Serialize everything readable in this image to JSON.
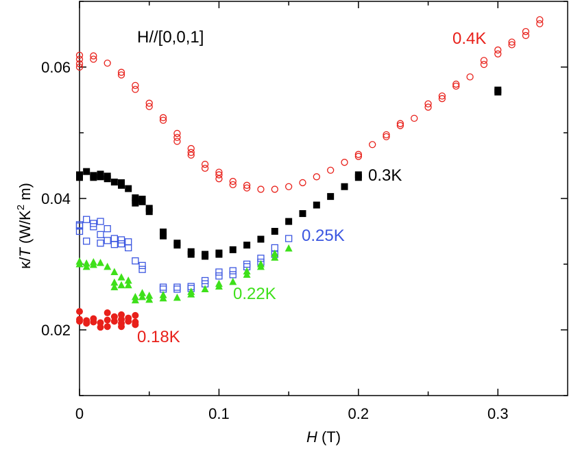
{
  "chart_data": {
    "type": "scatter",
    "title": "",
    "annotation": "H//[0,0,1]",
    "xlabel": {
      "italic": "H",
      "rest": " (T)"
    },
    "ylabel": {
      "kappa": "κ/",
      "T": "T",
      "unit_pre": " (W/K",
      "sup": "2",
      "unit_post": " m)"
    },
    "xlim": [
      0,
      0.35
    ],
    "ylim": [
      0.01,
      0.07
    ],
    "xticks": [
      0,
      0.1,
      0.2,
      0.3
    ],
    "xtick_labels": [
      "0",
      "0.1",
      "0.2",
      "0.3"
    ],
    "yticks": [
      0.02,
      0.04,
      0.06
    ],
    "ytick_labels": [
      "0.02",
      "0.04",
      "0.06"
    ],
    "series": [
      {
        "name": "0.4K",
        "label": "0.4K",
        "color": "#e8201a",
        "marker": "open-circle",
        "points": [
          [
            0,
            0.0618
          ],
          [
            0,
            0.0612
          ],
          [
            0,
            0.0605
          ],
          [
            0,
            0.06
          ],
          [
            0.01,
            0.0617
          ],
          [
            0.01,
            0.0612
          ],
          [
            0.02,
            0.0606
          ],
          [
            0.03,
            0.0592
          ],
          [
            0.03,
            0.0588
          ],
          [
            0.04,
            0.0572
          ],
          [
            0.04,
            0.0566
          ],
          [
            0.05,
            0.0545
          ],
          [
            0.05,
            0.054
          ],
          [
            0.06,
            0.0523
          ],
          [
            0.06,
            0.0519
          ],
          [
            0.07,
            0.0499
          ],
          [
            0.07,
            0.0493
          ],
          [
            0.07,
            0.0487
          ],
          [
            0.08,
            0.0476
          ],
          [
            0.08,
            0.047
          ],
          [
            0.08,
            0.0466
          ],
          [
            0.09,
            0.0452
          ],
          [
            0.09,
            0.0446
          ],
          [
            0.1,
            0.044
          ],
          [
            0.1,
            0.0436
          ],
          [
            0.1,
            0.043
          ],
          [
            0.11,
            0.0426
          ],
          [
            0.11,
            0.0421
          ],
          [
            0.12,
            0.042
          ],
          [
            0.12,
            0.0416
          ],
          [
            0.13,
            0.0414
          ],
          [
            0.14,
            0.0414
          ],
          [
            0.15,
            0.0418
          ],
          [
            0.16,
            0.0424
          ],
          [
            0.17,
            0.0433
          ],
          [
            0.18,
            0.0443
          ],
          [
            0.19,
            0.0455
          ],
          [
            0.2,
            0.0467
          ],
          [
            0.2,
            0.0464
          ],
          [
            0.21,
            0.0482
          ],
          [
            0.22,
            0.0497
          ],
          [
            0.22,
            0.0494
          ],
          [
            0.23,
            0.0514
          ],
          [
            0.23,
            0.0511
          ],
          [
            0.24,
            0.0522
          ],
          [
            0.25,
            0.0544
          ],
          [
            0.25,
            0.0539
          ],
          [
            0.26,
            0.0556
          ],
          [
            0.26,
            0.0552
          ],
          [
            0.27,
            0.0574
          ],
          [
            0.27,
            0.0571
          ],
          [
            0.28,
            0.0585
          ],
          [
            0.29,
            0.061
          ],
          [
            0.29,
            0.0604
          ],
          [
            0.3,
            0.0626
          ],
          [
            0.3,
            0.062
          ],
          [
            0.31,
            0.0638
          ],
          [
            0.31,
            0.0634
          ],
          [
            0.32,
            0.0654
          ],
          [
            0.32,
            0.0648
          ],
          [
            0.33,
            0.0672
          ],
          [
            0.33,
            0.0666
          ]
        ]
      },
      {
        "name": "0.3K",
        "label": "0.3K",
        "color": "#000000",
        "marker": "filled-square",
        "points": [
          [
            0,
            0.0436
          ],
          [
            0,
            0.0432
          ],
          [
            0.005,
            0.0441
          ],
          [
            0.01,
            0.0435
          ],
          [
            0.01,
            0.0432
          ],
          [
            0.015,
            0.0437
          ],
          [
            0.015,
            0.0433
          ],
          [
            0.02,
            0.0434
          ],
          [
            0.02,
            0.043
          ],
          [
            0.025,
            0.0425
          ],
          [
            0.03,
            0.0424
          ],
          [
            0.03,
            0.042
          ],
          [
            0.035,
            0.0415
          ],
          [
            0.04,
            0.0401
          ],
          [
            0.04,
            0.0397
          ],
          [
            0.04,
            0.0393
          ],
          [
            0.045,
            0.0399
          ],
          [
            0.045,
            0.0395
          ],
          [
            0.05,
            0.0385
          ],
          [
            0.05,
            0.038
          ],
          [
            0.06,
            0.0349
          ],
          [
            0.06,
            0.0343
          ],
          [
            0.07,
            0.0332
          ],
          [
            0.07,
            0.0329
          ],
          [
            0.08,
            0.0319
          ],
          [
            0.08,
            0.0315
          ],
          [
            0.09,
            0.0315
          ],
          [
            0.09,
            0.0312
          ],
          [
            0.1,
            0.0317
          ],
          [
            0.1,
            0.0315
          ],
          [
            0.11,
            0.0322
          ],
          [
            0.12,
            0.0329
          ],
          [
            0.13,
            0.0338
          ],
          [
            0.14,
            0.035
          ],
          [
            0.15,
            0.0365
          ],
          [
            0.16,
            0.0377
          ],
          [
            0.17,
            0.039
          ],
          [
            0.18,
            0.0403
          ],
          [
            0.19,
            0.0418
          ],
          [
            0.2,
            0.0436
          ],
          [
            0.2,
            0.0432
          ],
          [
            0.3,
            0.0565
          ],
          [
            0.3,
            0.0562
          ]
        ]
      },
      {
        "name": "0.25K",
        "label": "0.25K",
        "color": "#3b56e0",
        "marker": "open-square",
        "points": [
          [
            0,
            0.036
          ],
          [
            0,
            0.0358
          ],
          [
            0,
            0.035
          ],
          [
            0.005,
            0.0335
          ],
          [
            0.005,
            0.0368
          ],
          [
            0.01,
            0.0362
          ],
          [
            0.01,
            0.0357
          ],
          [
            0.015,
            0.0365
          ],
          [
            0.015,
            0.0345
          ],
          [
            0.015,
            0.0332
          ],
          [
            0.02,
            0.0354
          ],
          [
            0.02,
            0.0336
          ],
          [
            0.025,
            0.0339
          ],
          [
            0.025,
            0.033
          ],
          [
            0.03,
            0.0337
          ],
          [
            0.03,
            0.0331
          ],
          [
            0.035,
            0.0334
          ],
          [
            0.035,
            0.0325
          ],
          [
            0.04,
            0.0305
          ],
          [
            0.045,
            0.0298
          ],
          [
            0.045,
            0.0292
          ],
          [
            0.06,
            0.0265
          ],
          [
            0.06,
            0.0262
          ],
          [
            0.07,
            0.0265
          ],
          [
            0.07,
            0.0262
          ],
          [
            0.08,
            0.0266
          ],
          [
            0.08,
            0.0263
          ],
          [
            0.09,
            0.0275
          ],
          [
            0.09,
            0.027
          ],
          [
            0.1,
            0.0288
          ],
          [
            0.1,
            0.0282
          ],
          [
            0.11,
            0.029
          ],
          [
            0.11,
            0.0284
          ],
          [
            0.12,
            0.03
          ],
          [
            0.12,
            0.0296
          ],
          [
            0.13,
            0.0309
          ],
          [
            0.13,
            0.0303
          ],
          [
            0.14,
            0.0325
          ],
          [
            0.14,
            0.0315
          ],
          [
            0.15,
            0.0339
          ]
        ]
      },
      {
        "name": "0.22K",
        "label": "0.22K",
        "color": "#3ee01a",
        "marker": "filled-triangle",
        "points": [
          [
            0,
            0.0304
          ],
          [
            0,
            0.03
          ],
          [
            0.005,
            0.0301
          ],
          [
            0.005,
            0.0296
          ],
          [
            0.01,
            0.0303
          ],
          [
            0.01,
            0.0299
          ],
          [
            0.015,
            0.0302
          ],
          [
            0.02,
            0.0296
          ],
          [
            0.025,
            0.0288
          ],
          [
            0.03,
            0.028
          ],
          [
            0.035,
            0.0275
          ],
          [
            0.025,
            0.0272
          ],
          [
            0.03,
            0.0268
          ],
          [
            0.035,
            0.0268
          ],
          [
            0.025,
            0.0265
          ],
          [
            0.04,
            0.025
          ],
          [
            0.04,
            0.0245
          ],
          [
            0.045,
            0.0256
          ],
          [
            0.045,
            0.025
          ],
          [
            0.05,
            0.0252
          ],
          [
            0.05,
            0.0246
          ],
          [
            0.06,
            0.0253
          ],
          [
            0.06,
            0.0248
          ],
          [
            0.07,
            0.0249
          ],
          [
            0.08,
            0.0258
          ],
          [
            0.08,
            0.0254
          ],
          [
            0.09,
            0.0262
          ],
          [
            0.1,
            0.027
          ],
          [
            0.1,
            0.0266
          ],
          [
            0.11,
            0.0273
          ],
          [
            0.12,
            0.0289
          ],
          [
            0.12,
            0.0284
          ],
          [
            0.13,
            0.03
          ],
          [
            0.13,
            0.0296
          ],
          [
            0.14,
            0.0316
          ],
          [
            0.14,
            0.031
          ],
          [
            0.15,
            0.0324
          ]
        ]
      },
      {
        "name": "0.18K",
        "label": "0.18K",
        "color": "#e8201a",
        "marker": "filled-circle",
        "points": [
          [
            0,
            0.0228
          ],
          [
            0,
            0.0216
          ],
          [
            0,
            0.0213
          ],
          [
            0.005,
            0.0214
          ],
          [
            0.005,
            0.021
          ],
          [
            0.01,
            0.0217
          ],
          [
            0.01,
            0.0212
          ],
          [
            0.015,
            0.0211
          ],
          [
            0.015,
            0.0204
          ],
          [
            0.02,
            0.0226
          ],
          [
            0.02,
            0.0215
          ],
          [
            0.02,
            0.0205
          ],
          [
            0.025,
            0.022
          ],
          [
            0.025,
            0.0213
          ],
          [
            0.03,
            0.0223
          ],
          [
            0.03,
            0.0216
          ],
          [
            0.03,
            0.021
          ],
          [
            0.03,
            0.0205
          ],
          [
            0.035,
            0.0218
          ],
          [
            0.035,
            0.0213
          ],
          [
            0.04,
            0.0222
          ],
          [
            0.04,
            0.0212
          ],
          [
            0.04,
            0.0208
          ]
        ]
      }
    ]
  }
}
